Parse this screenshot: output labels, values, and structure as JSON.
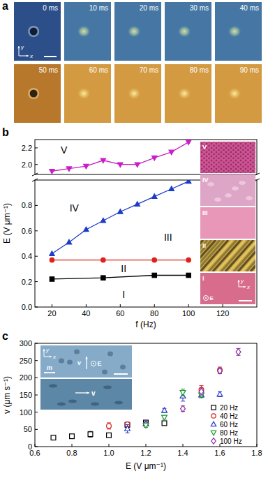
{
  "panel_a": {
    "panel_label": "a",
    "frames": [
      "0 ms",
      "10 ms",
      "20 ms",
      "30 ms",
      "40 ms",
      "50 ms",
      "60 ms",
      "70 ms",
      "80 ms",
      "90 ms"
    ],
    "axes": [
      "x",
      "y"
    ]
  },
  "chart_data": [
    {
      "type": "line",
      "tick_labels": "y",
      "xlim": [
        10,
        140
      ],
      "ylim": [
        1.88,
        2.3
      ],
      "yticks": [
        {
          "value": 2,
          "label": "2.0"
        },
        2.2
      ],
      "series": [
        {
          "color": "#c81ec8",
          "marker": "triangle-down",
          "x": [
            20,
            30,
            40,
            50,
            60,
            70,
            80,
            90,
            100
          ],
          "values": [
            1.92,
            1.95,
            1.98,
            2.05,
            2.0,
            2.0,
            2.08,
            2.15,
            2.27
          ]
        }
      ],
      "annotations": [
        {
          "text": "V",
          "x": 27,
          "y": 2.17
        }
      ]
    },
    {
      "type": "line",
      "panel_label": "b",
      "x_label": "f (Hz)",
      "y_label": "E (V μm⁻¹)",
      "xlim": [
        10,
        140
      ],
      "ylim": [
        0,
        1.0
      ],
      "xticks": [
        20,
        40,
        60,
        80,
        100,
        120
      ],
      "yticks": [
        {
          "value": 0,
          "label": "0.0"
        },
        0.2,
        0.4,
        0.6,
        0.8
      ],
      "series": [
        {
          "color": "#000000",
          "marker": "square",
          "x": [
            20,
            50,
            80,
            100
          ],
          "values": [
            0.22,
            0.23,
            0.25,
            0.25
          ]
        },
        {
          "color": "#e0201c",
          "marker": "circle",
          "x": [
            20,
            50,
            80,
            100
          ],
          "values": [
            0.37,
            0.37,
            0.37,
            0.37
          ]
        },
        {
          "color": "#1c3cc8",
          "marker": "triangle",
          "x": [
            20,
            30,
            40,
            50,
            60,
            70,
            80,
            90,
            100
          ],
          "values": [
            0.42,
            0.51,
            0.61,
            0.68,
            0.75,
            0.81,
            0.87,
            0.93,
            0.99
          ]
        }
      ],
      "annotations": [
        {
          "text": "IV",
          "x": 33,
          "y": 0.78
        },
        {
          "text": "III",
          "x": 88,
          "y": 0.55
        },
        {
          "text": "II",
          "x": 62,
          "y": 0.3
        },
        {
          "text": "I",
          "x": 62,
          "y": 0.1
        }
      ],
      "insets": {
        "labels": [
          "V",
          "IV",
          "III",
          "II",
          "I"
        ],
        "axes": [
          "x",
          "y"
        ],
        "field": "E"
      }
    },
    {
      "type": "scatter",
      "panel_label": "c",
      "x_label": "E (V μm⁻¹)",
      "y_label": "v (μm s⁻¹)",
      "xlim": [
        0.6,
        1.8
      ],
      "ylim": [
        0,
        300
      ],
      "xticks": [
        0.6,
        0.8,
        {
          "value": 1,
          "label": "1.0"
        },
        1.2,
        1.4,
        1.6,
        1.8
      ],
      "yticks": [
        0,
        50,
        100,
        150,
        200,
        250,
        300
      ],
      "legend": "bottom-right",
      "series": [
        {
          "name": "20 Hz",
          "color": "#000000",
          "marker": "square-open",
          "x": [
            0.7,
            0.8,
            0.9,
            1.0,
            1.1,
            1.2,
            1.3
          ],
          "values": [
            26,
            30,
            36,
            33,
            63,
            70,
            68
          ],
          "errors": [
            6,
            5,
            8,
            6,
            5,
            4,
            5
          ]
        },
        {
          "name": "40 Hz",
          "color": "#d42020",
          "marker": "circle-open",
          "x": [
            1.0,
            1.1,
            1.2,
            1.5,
            1.6
          ],
          "values": [
            60,
            65,
            66,
            165,
            222
          ],
          "errors": [
            9,
            6,
            5,
            12,
            9
          ]
        },
        {
          "name": "60 Hz",
          "color": "#2a3cc8",
          "marker": "triangle-open",
          "x": [
            1.1,
            1.2,
            1.3,
            1.4,
            1.5,
            1.6
          ],
          "values": [
            52,
            66,
            105,
            147,
            150,
            152
          ],
          "errors": [
            12,
            5,
            6,
            15,
            8,
            7
          ]
        },
        {
          "name": "80 Hz",
          "color": "#1c9c2c",
          "marker": "triangle-down-open",
          "x": [
            1.2,
            1.3,
            1.4,
            1.5
          ],
          "values": [
            62,
            85,
            157,
            150
          ],
          "errors": [
            6,
            5,
            10,
            7
          ]
        },
        {
          "name": "100 Hz",
          "color": "#8a2aa0",
          "marker": "diamond-open",
          "x": [
            1.4,
            1.5,
            1.6,
            1.7
          ],
          "values": [
            110,
            160,
            220,
            275
          ],
          "errors": [
            8,
            10,
            8,
            10
          ]
        }
      ],
      "insets": {
        "axes": [
          "x",
          "y"
        ],
        "top": {
          "velocity": "v",
          "field": "E",
          "director": "m"
        },
        "bottom": {
          "velocity": "v"
        }
      }
    }
  ]
}
